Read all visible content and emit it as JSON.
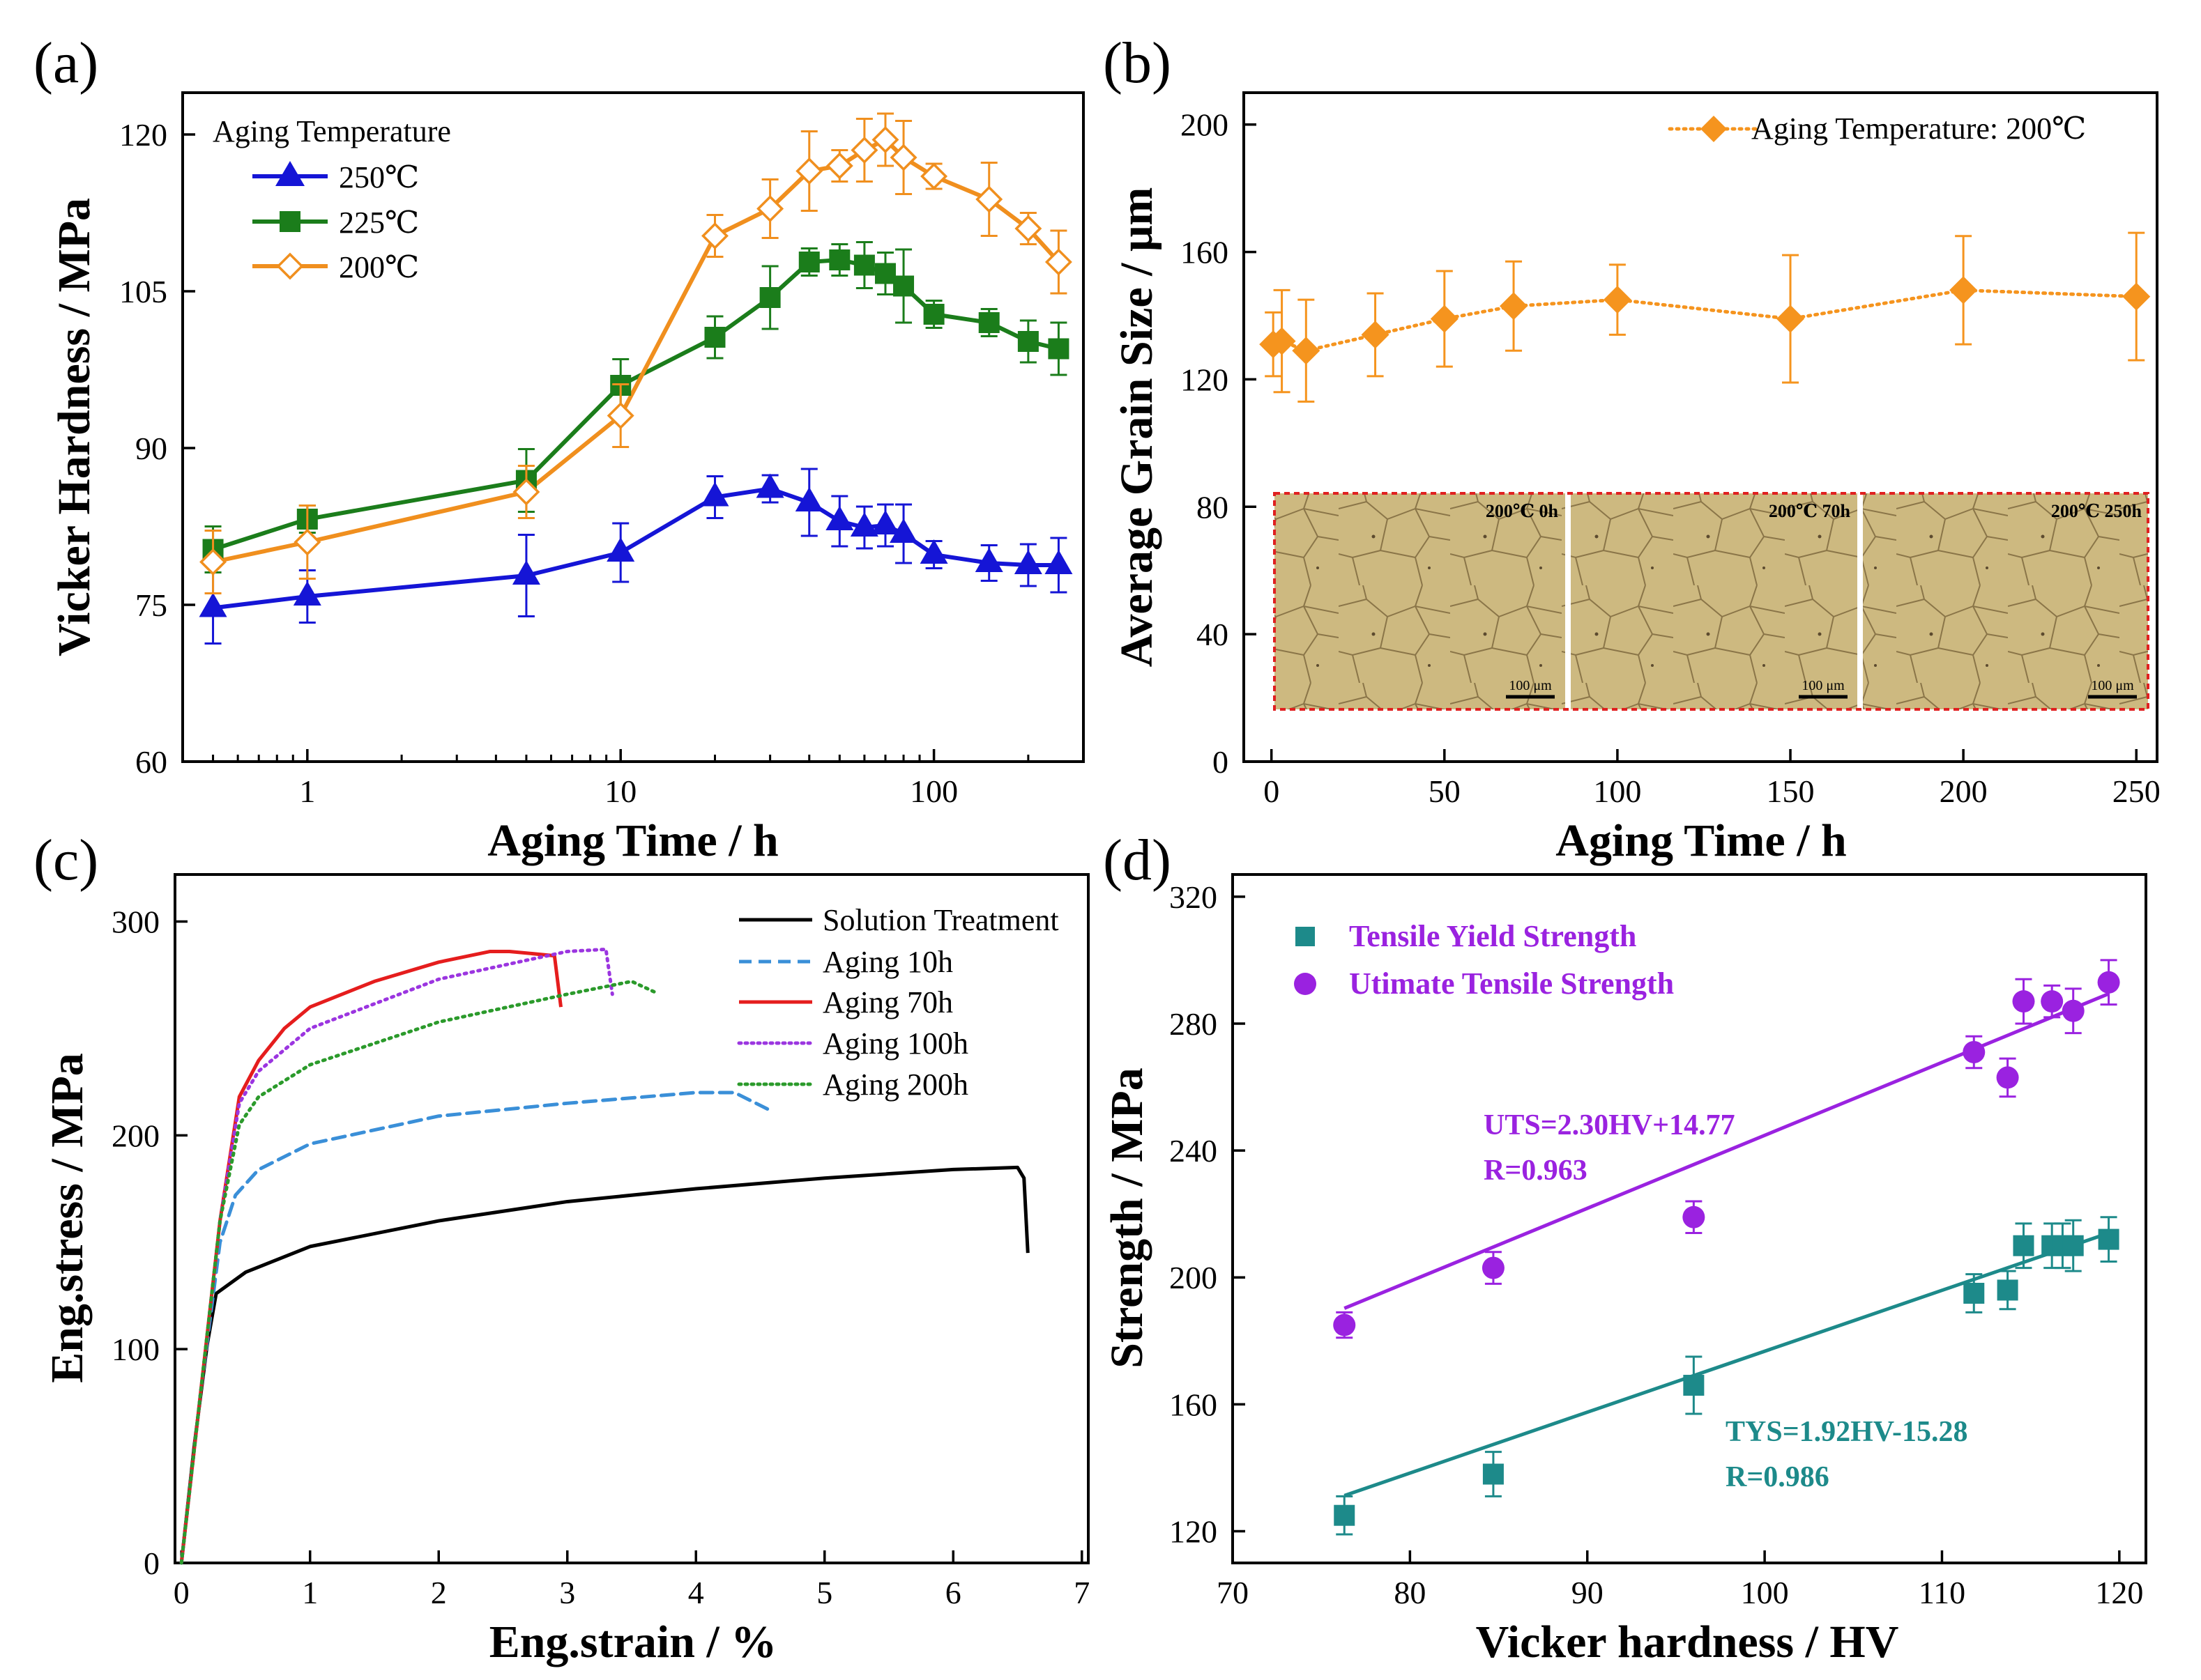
{
  "chart_data": [
    {
      "panel": "(a)",
      "type": "line",
      "xscale": "log",
      "xlabel": "Aging Time / h",
      "ylabel": "Vicker Hardness / MPa",
      "xlim": [
        0.4,
        300
      ],
      "ylim": [
        60,
        124
      ],
      "xticks": [
        1,
        10,
        100
      ],
      "xtick_labels": [
        "1",
        "10",
        "100"
      ],
      "yticks": [
        60,
        75,
        90,
        105,
        120
      ],
      "ytick_labels": [
        "60",
        "75",
        "90",
        "105",
        "120"
      ],
      "legend_title": "Aging Temperature",
      "legend_position": "top-left",
      "series": [
        {
          "name": "250℃",
          "color": "#1515d6",
          "marker": "triangle",
          "x": [
            0.5,
            1,
            5,
            10,
            20,
            30,
            40,
            50,
            60,
            70,
            80,
            100,
            150,
            200,
            250
          ],
          "y": [
            74.7,
            75.8,
            77.8,
            80.0,
            85.3,
            86.1,
            84.8,
            83.0,
            82.4,
            82.6,
            81.8,
            79.8,
            79.0,
            78.8,
            78.8
          ],
          "err": [
            3.4,
            2.5,
            3.9,
            2.8,
            2.0,
            1.3,
            3.2,
            2.4,
            2.0,
            2.0,
            2.8,
            1.3,
            1.7,
            2.0,
            2.6
          ]
        },
        {
          "name": "225℃",
          "color": "#1b7d1b",
          "marker": "square",
          "x": [
            0.5,
            1,
            5,
            10,
            20,
            30,
            40,
            50,
            60,
            70,
            80,
            100,
            150,
            200,
            250
          ],
          "y": [
            80.3,
            83.2,
            86.9,
            96.0,
            100.6,
            104.4,
            107.8,
            108.0,
            107.5,
            106.7,
            105.5,
            102.8,
            102.0,
            100.2,
            99.5
          ],
          "err": [
            2.2,
            1.3,
            3.0,
            2.5,
            2.0,
            3.0,
            1.3,
            1.5,
            2.2,
            2.0,
            3.5,
            1.3,
            1.3,
            2.0,
            2.5
          ]
        },
        {
          "name": "200℃",
          "color": "#f08f1e",
          "marker": "diamond-open",
          "x": [
            0.5,
            1,
            5,
            10,
            20,
            30,
            40,
            50,
            60,
            70,
            80,
            100,
            150,
            200,
            250
          ],
          "y": [
            79.1,
            81.0,
            85.8,
            93.1,
            110.3,
            112.9,
            116.5,
            117.0,
            118.5,
            119.5,
            117.8,
            116.0,
            113.8,
            111.0,
            107.8
          ],
          "err": [
            3.0,
            3.5,
            2.5,
            3.0,
            2.0,
            2.8,
            3.8,
            1.5,
            3.0,
            2.5,
            3.5,
            1.2,
            3.5,
            1.5,
            3.0
          ]
        }
      ]
    },
    {
      "panel": "(b)",
      "type": "line",
      "xlabel": "Aging Time / h",
      "ylabel": "Average Grain Size / μm",
      "xlim": [
        -8,
        256
      ],
      "ylim": [
        0,
        210
      ],
      "xticks": [
        0,
        50,
        100,
        150,
        200,
        250
      ],
      "xtick_labels": [
        "0",
        "50",
        "100",
        "150",
        "200",
        "250"
      ],
      "yticks": [
        0,
        40,
        80,
        120,
        160,
        200
      ],
      "ytick_labels": [
        "0",
        "40",
        "80",
        "120",
        "160",
        "200"
      ],
      "legend_position": "top-right",
      "series": [
        {
          "name": "Aging Temperature: 200℃",
          "color": "#f5941e",
          "marker": "diamond",
          "line": "dotted",
          "x": [
            0.5,
            3,
            10,
            30,
            50,
            70,
            100,
            150,
            200,
            250
          ],
          "y": [
            131,
            132,
            129,
            134,
            139,
            143,
            145,
            139,
            148,
            146
          ],
          "err": [
            10,
            16,
            16,
            13,
            15,
            14,
            11,
            20,
            17,
            20
          ]
        }
      ],
      "inset": {
        "description": "optical micrographs",
        "labels": [
          "200℃ 0h",
          "200℃ 70h",
          "200℃ 250h"
        ],
        "scale_bar": "100 μm"
      }
    },
    {
      "panel": "(c)",
      "type": "line",
      "xlabel": "Eng.strain / %",
      "ylabel": "Eng.stress / MPa",
      "xlim": [
        -0.05,
        7.05
      ],
      "ylim": [
        0,
        322
      ],
      "xticks": [
        0,
        1,
        2,
        3,
        4,
        5,
        6,
        7
      ],
      "xtick_labels": [
        "0",
        "1",
        "2",
        "3",
        "4",
        "5",
        "6",
        "7"
      ],
      "yticks": [
        0,
        100,
        200,
        300
      ],
      "ytick_labels": [
        "0",
        "100",
        "200",
        "300"
      ],
      "legend_position": "top-right",
      "series": [
        {
          "name": "Solution Treatment",
          "color": "#000000",
          "line": "solid",
          "x": [
            0,
            0.1,
            0.2,
            0.27,
            0.5,
            1.0,
            2.0,
            3.0,
            4.0,
            5.0,
            6.0,
            6.5,
            6.55,
            6.58
          ],
          "y": [
            0,
            55,
            102,
            126,
            136,
            148,
            160,
            169,
            175,
            180,
            184,
            185,
            180,
            145
          ]
        },
        {
          "name": "Aging 10h",
          "color": "#3a8fd8",
          "line": "dashed",
          "x": [
            0,
            0.15,
            0.3,
            0.42,
            0.6,
            1.0,
            2.0,
            3.0,
            4.0,
            4.3,
            4.6
          ],
          "y": [
            0,
            80,
            150,
            172,
            184,
            196,
            209,
            215,
            220,
            220,
            211
          ]
        },
        {
          "name": "Aging 70h",
          "color": "#e51d1d",
          "line": "solid",
          "x": [
            0,
            0.15,
            0.3,
            0.45,
            0.6,
            0.8,
            1.0,
            1.5,
            2.0,
            2.4,
            2.55,
            2.9,
            2.95
          ],
          "y": [
            0,
            80,
            160,
            218,
            235,
            250,
            260,
            272,
            281,
            286,
            286,
            284,
            260
          ]
        },
        {
          "name": "Aging 100h",
          "color": "#9b35e0",
          "line": "dotted",
          "x": [
            0,
            0.15,
            0.3,
            0.45,
            0.6,
            1.0,
            2.0,
            3.0,
            3.3,
            3.35
          ],
          "y": [
            0,
            80,
            160,
            215,
            230,
            250,
            273,
            286,
            287,
            266
          ]
        },
        {
          "name": "Aging 200h",
          "color": "#2b9a2b",
          "line": "dotted",
          "x": [
            0,
            0.15,
            0.3,
            0.45,
            0.6,
            1.0,
            2.0,
            3.0,
            3.5,
            3.68
          ],
          "y": [
            0,
            80,
            160,
            205,
            218,
            233,
            253,
            266,
            272,
            267
          ]
        }
      ]
    },
    {
      "panel": "(d)",
      "type": "scatter",
      "xlabel": "Vicker hardness / HV",
      "ylabel": "Strength / MPa",
      "xlim": [
        70,
        121.5
      ],
      "ylim": [
        110,
        327
      ],
      "xticks": [
        70,
        80,
        90,
        100,
        110,
        120
      ],
      "xtick_labels": [
        "70",
        "80",
        "90",
        "100",
        "110",
        "120"
      ],
      "yticks": [
        120,
        160,
        200,
        240,
        280,
        320
      ],
      "ytick_labels": [
        "120",
        "160",
        "200",
        "240",
        "280",
        "320"
      ],
      "legend_position": "top-left",
      "series": [
        {
          "name": "Tensile Yield Strength",
          "color": "#1d8a8a",
          "marker": "square",
          "x": [
            76.3,
            84.7,
            96.0,
            111.8,
            113.7,
            114.6,
            116.2,
            116.8,
            117.4,
            119.4
          ],
          "y": [
            125,
            138,
            166,
            195,
            196,
            210,
            210,
            210,
            210,
            212
          ],
          "err": [
            6,
            7,
            9,
            6,
            6,
            7,
            7,
            7,
            8,
            7
          ],
          "fit": {
            "label": "TYS=1.92HV-15.28",
            "r_label": "R=0.986",
            "slope": 1.92,
            "intercept": -15.28,
            "x_range": [
              76.3,
              119.4
            ]
          }
        },
        {
          "name": "Utimate Tensile Strength",
          "color": "#9a22e0",
          "marker": "circle",
          "x": [
            76.3,
            84.7,
            96.0,
            111.8,
            113.7,
            114.6,
            116.2,
            117.4,
            119.4
          ],
          "y": [
            185,
            203,
            219,
            271,
            263,
            287,
            287,
            284,
            293
          ],
          "err": [
            4,
            5,
            5,
            5,
            6,
            7,
            5,
            7,
            7
          ],
          "fit": {
            "label": "UTS=2.30HV+14.77",
            "r_label": "R=0.963",
            "slope": 2.3,
            "intercept": 14.77,
            "x_range": [
              76.3,
              119.4
            ]
          }
        }
      ]
    }
  ]
}
